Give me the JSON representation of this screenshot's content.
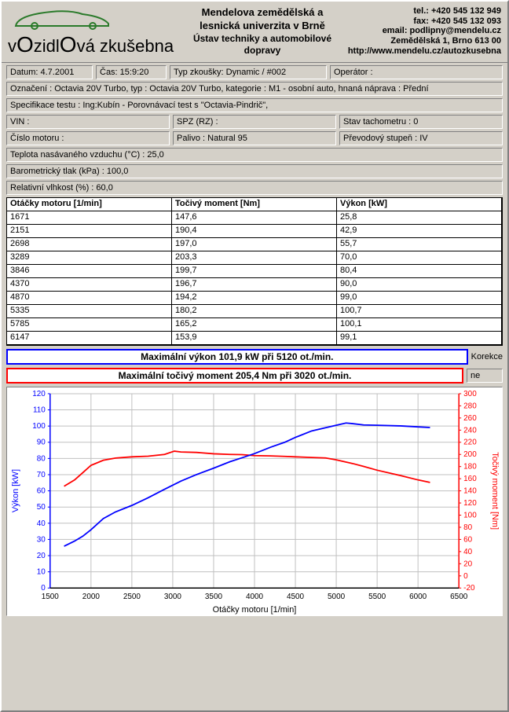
{
  "header": {
    "org1": "Mendelova zemědělská a lesnická univerzita v Brně",
    "org2": "Ústav techniky a automobilové dopravy",
    "tel": "tel.: +420 545 132 949",
    "fax": "fax: +420 545 132 093",
    "email": "email: podlipny@mendelu.cz",
    "addr": "Zemědělská 1, Brno 613 00",
    "url": "http://www.mendelu.cz/autozkusebna",
    "logo_top": "vOzidlOvá",
    "logo_bot": "zkušebna"
  },
  "fields": {
    "datum": "Datum: 4.7.2001",
    "cas": "Čas: 15:9:20",
    "typ_zk": "Typ zkoušky: Dynamic / #002",
    "operator": "Operátor :",
    "oznaceni": "Označení : Octavia 20V Turbo, typ : Octavia 20V Turbo, kategorie : M1 - osobní auto, hnaná náprava : Přední",
    "spec": "Specifikace testu : Ing:Kubín - Porovnávací test s \"Octavia-Pindrič\",",
    "vin": "VIN :",
    "spz": "SPZ (RZ) :",
    "tacho": "Stav tachometru : 0",
    "cislo_mot": "Číslo motoru :",
    "palivo": "Palivo : Natural 95",
    "prevod": "Převodový stupeň : IV",
    "teplota": "Teplota nasávaného vzduchu (°C) : 25,0",
    "baro": "Barometrický tlak (kPa) : 100,0",
    "vlhkost": "Relativní vlhkost (%) : 60,0"
  },
  "table": {
    "headers": [
      "Otáčky motoru [1/min]",
      "Točivý moment [Nm]",
      "Výkon [kW]"
    ],
    "rows": [
      [
        "1671",
        "147,6",
        "25,8"
      ],
      [
        "2151",
        "190,4",
        "42,9"
      ],
      [
        "2698",
        "197,0",
        "55,7"
      ],
      [
        "3289",
        "203,3",
        "70,0"
      ],
      [
        "3846",
        "199,7",
        "80,4"
      ],
      [
        "4370",
        "196,7",
        "90,0"
      ],
      [
        "4870",
        "194,2",
        "99,0"
      ],
      [
        "5335",
        "180,2",
        "100,7"
      ],
      [
        "5785",
        "165,2",
        "100,1"
      ],
      [
        "6147",
        "153,9",
        "99,1"
      ]
    ]
  },
  "summary": {
    "power": "Maximální výkon 101,9 kW při 5120 ot./min.",
    "torque": "Maximální točivý moment 205,4 Nm při 3020 ot./min.",
    "korekce_label": "Korekce",
    "korekce_val": "ne"
  },
  "chart": {
    "type": "line-dual-axis",
    "background_color": "#ffffff",
    "grid_color": "#c0c0c0",
    "axis_color": "#000000",
    "left_axis_color": "#0000ff",
    "right_axis_color": "#ff0000",
    "xlabel": "Otáčky motoru [1/min]",
    "ylabel_left": "Výkon [kW]",
    "ylabel_right": "Točivý moment [Nm]",
    "label_fontsize": 11,
    "tick_fontsize": 10,
    "line_width": 1.8,
    "xlim": [
      1500,
      6500
    ],
    "xtick_step": 500,
    "ylim_left": [
      0,
      120
    ],
    "ytick_left_step": 10,
    "ylim_right": [
      -20,
      300
    ],
    "ytick_right_step": 20,
    "power_series": {
      "color": "#0000ff",
      "x": [
        1671,
        1800,
        1900,
        2000,
        2151,
        2300,
        2500,
        2698,
        2900,
        3100,
        3289,
        3500,
        3700,
        3846,
        4000,
        4200,
        4370,
        4500,
        4700,
        4870,
        5000,
        5120,
        5200,
        5335,
        5500,
        5785,
        6000,
        6147
      ],
      "y": [
        25.8,
        29,
        32,
        36,
        42.9,
        47,
        51,
        55.7,
        61,
        66,
        70.0,
        74,
        78,
        80.4,
        83,
        87,
        90.0,
        93,
        97,
        99.0,
        100.5,
        101.9,
        101.5,
        100.7,
        100.5,
        100.1,
        99.5,
        99.1
      ]
    },
    "torque_series": {
      "color": "#ff0000",
      "x": [
        1671,
        1800,
        1900,
        2000,
        2151,
        2300,
        2500,
        2698,
        2900,
        3020,
        3100,
        3289,
        3500,
        3700,
        3846,
        4000,
        4200,
        4370,
        4500,
        4700,
        4870,
        5000,
        5200,
        5335,
        5500,
        5785,
        6000,
        6147
      ],
      "y": [
        147.6,
        158,
        170,
        182,
        190.4,
        194,
        196,
        197.0,
        200,
        205.4,
        204,
        203.3,
        201,
        200,
        199.7,
        198,
        197.5,
        196.7,
        196,
        195,
        194.2,
        191,
        185,
        180.2,
        174,
        165.2,
        158,
        153.9
      ]
    }
  }
}
